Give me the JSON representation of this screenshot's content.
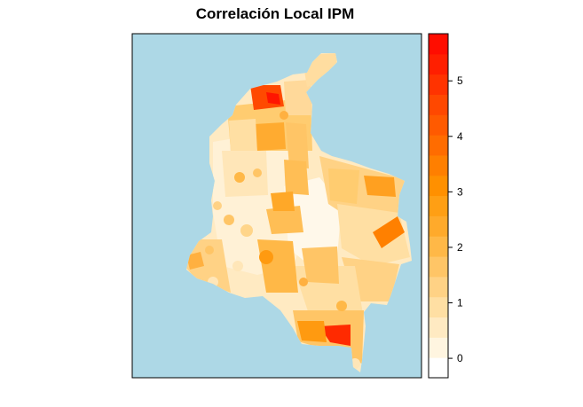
{
  "title": "Correlación Local IPM",
  "colors": {
    "sea": "#add8e6",
    "border": "#000000",
    "scale": [
      "#ffffff",
      "#fff5e0",
      "#ffeac2",
      "#ffdfa3",
      "#ffd285",
      "#ffc566",
      "#ffb847",
      "#ffaa2b",
      "#ff9f14",
      "#ff9000",
      "#ff7f00",
      "#ff6c00",
      "#ff5a00",
      "#ff4800",
      "#ff3300",
      "#ff1f00",
      "#ff0d00"
    ]
  },
  "legend": {
    "min": -0.35,
    "max": 5.85,
    "ticks": [
      {
        "value": 0,
        "label": "0"
      },
      {
        "value": 1,
        "label": "1"
      },
      {
        "value": 2,
        "label": "2"
      },
      {
        "value": 3,
        "label": "3"
      },
      {
        "value": 4,
        "label": "4"
      },
      {
        "value": 5,
        "label": "5"
      }
    ]
  }
}
